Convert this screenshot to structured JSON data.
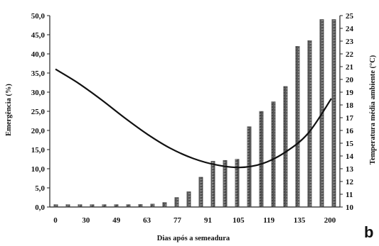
{
  "chart_data": {
    "type": "bar",
    "panel_label": "b",
    "xlabel": "Dias após a semeadura",
    "ylabel": "Emergência (%)",
    "y2label": "Temperatura média ambiente (°C)",
    "ylim": [
      0,
      50
    ],
    "y2lim": [
      10,
      25
    ],
    "yticks": [
      "0,0",
      "5,0",
      "10,0",
      "15,0",
      "20,0",
      "25,0",
      "30,0",
      "35,0",
      "40,0",
      "45,0",
      "50,0"
    ],
    "y2ticks": [
      "10",
      "11",
      "12",
      "13",
      "14",
      "15",
      "16",
      "17",
      "18",
      "19",
      "20",
      "21",
      "22",
      "23",
      "24",
      "25"
    ],
    "xticklabels": [
      "0",
      "30",
      "49",
      "63",
      "77",
      "91",
      "105",
      "119",
      "135",
      "200"
    ],
    "series": [
      {
        "type": "bar",
        "axis": "left",
        "values": [
          0.3,
          0.3,
          0.3,
          0.3,
          0.3,
          0.4,
          0.5,
          0.7,
          0.8,
          1.2,
          2.5,
          4.0,
          7.8,
          12.0,
          12.2,
          12.5,
          21.0,
          25.0,
          27.5,
          31.5,
          42.0,
          43.5,
          49.0,
          49.0
        ]
      },
      {
        "type": "line",
        "axis": "right",
        "values": [
          20.8,
          19.7,
          18.4,
          17.0,
          15.7,
          14.6,
          13.8,
          13.3,
          13.1,
          13.4,
          14.3,
          15.8,
          18.5
        ]
      }
    ]
  }
}
